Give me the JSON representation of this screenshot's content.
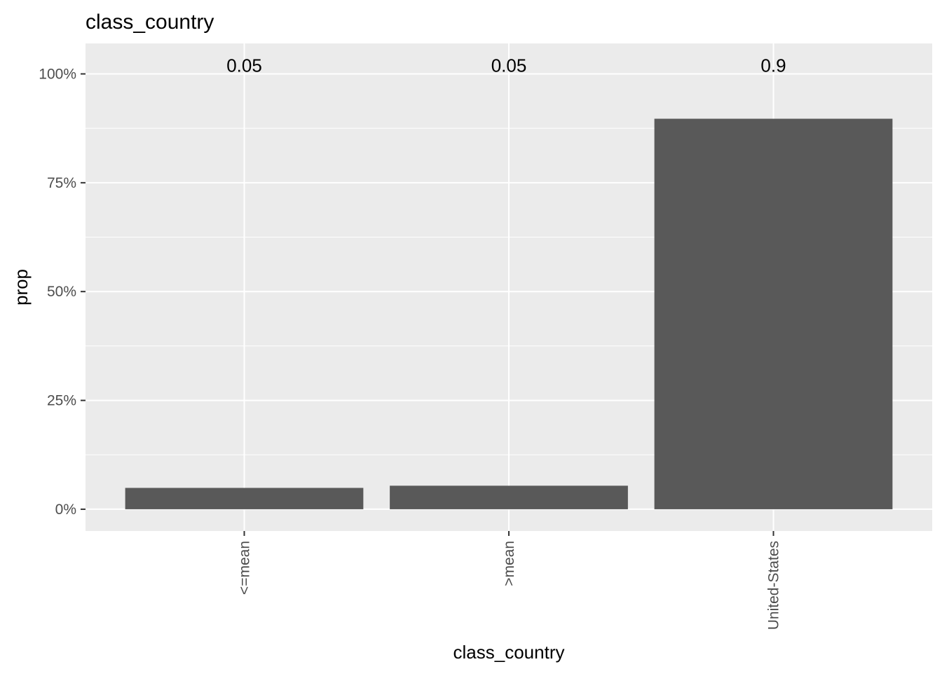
{
  "chart_data": {
    "type": "bar",
    "title": "class_country",
    "xlabel": "class_country",
    "ylabel": "prop",
    "categories": [
      "<=mean",
      ">mean",
      "United-States"
    ],
    "values": [
      0.049,
      0.054,
      0.897
    ],
    "data_labels": [
      "0.05",
      "0.05",
      "0.9"
    ],
    "ylim": [
      -0.05,
      1.07
    ],
    "yticks": [
      0,
      0.25,
      0.5,
      0.75,
      1.0
    ],
    "ytick_labels": [
      "0%",
      "25%",
      "50%",
      "75%",
      "100%"
    ],
    "grid": true,
    "legend": "none",
    "colors": {
      "bar": "#595959",
      "panel": "#ebebeb",
      "grid": "#ffffff",
      "tick_text": "#4d4d4d"
    }
  }
}
